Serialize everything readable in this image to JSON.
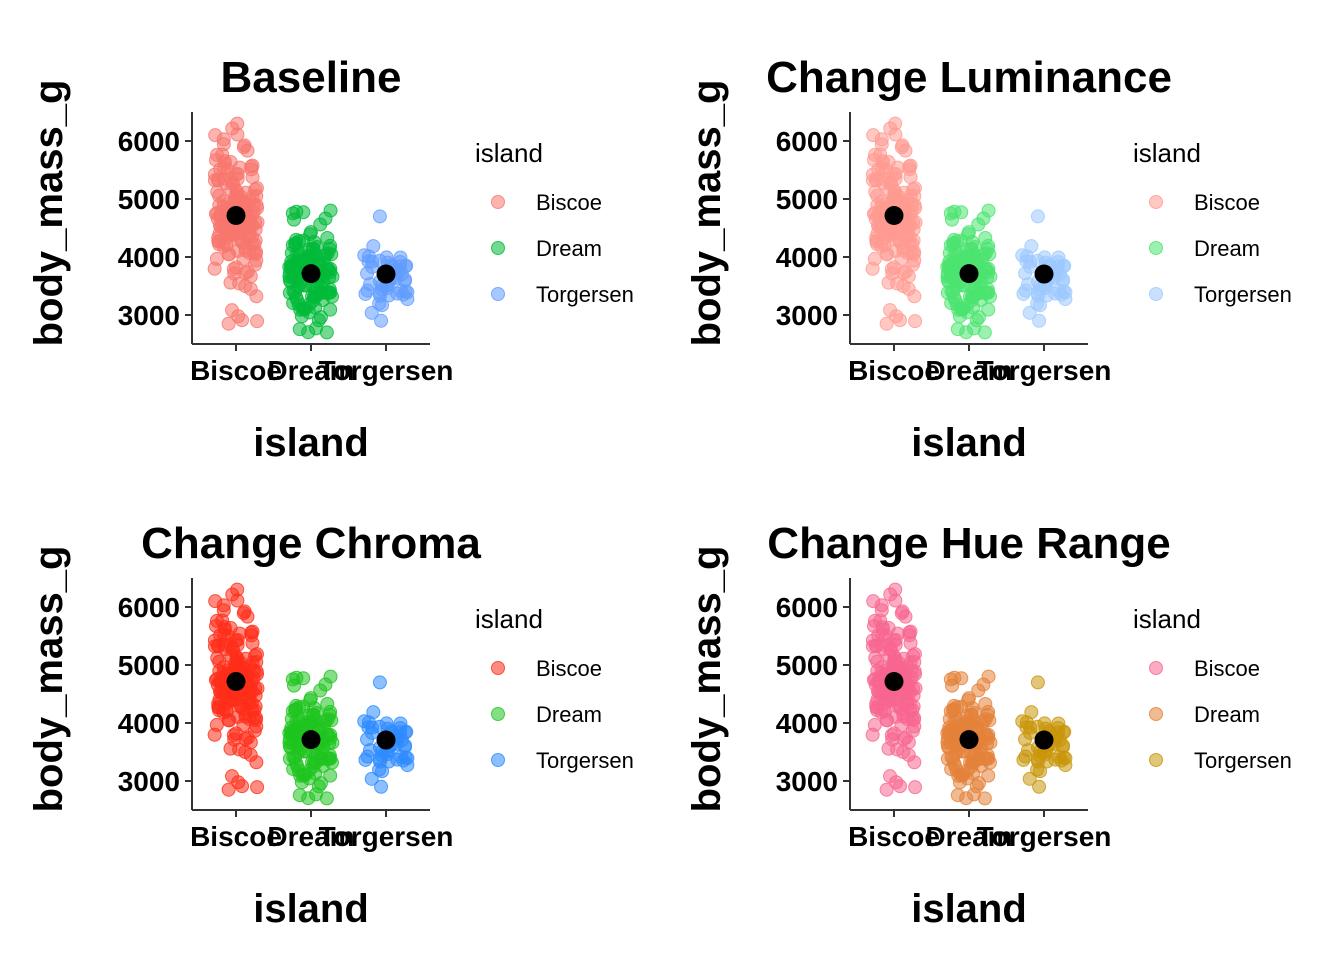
{
  "chart_data": [
    {
      "type": "scatter",
      "title": "Baseline",
      "xlabel": "island",
      "ylabel": "body_mass_g",
      "categories": [
        "Biscoe",
        "Dream",
        "Torgersen"
      ],
      "yticks": [
        3000,
        4000,
        5000,
        6000
      ],
      "ylim": [
        2500,
        6500
      ],
      "legend": {
        "title": "island",
        "position": "right"
      },
      "series": [
        {
          "name": "Biscoe",
          "color": "#F8766D",
          "mean": 4716,
          "min": 2850,
          "max": 6300,
          "n": 168
        },
        {
          "name": "Dream",
          "color": "#00BA38",
          "mean": 3713,
          "min": 2700,
          "max": 4800,
          "n": 124
        },
        {
          "name": "Torgersen",
          "color": "#619CFF",
          "mean": 3706,
          "min": 2900,
          "max": 4700,
          "n": 51
        }
      ],
      "mean_marker_color": "#000000"
    },
    {
      "type": "scatter",
      "title": "Change Luminance",
      "xlabel": "island",
      "ylabel": "body_mass_g",
      "categories": [
        "Biscoe",
        "Dream",
        "Torgersen"
      ],
      "yticks": [
        3000,
        4000,
        5000,
        6000
      ],
      "ylim": [
        2500,
        6500
      ],
      "legend": {
        "title": "island",
        "position": "right"
      },
      "series": [
        {
          "name": "Biscoe",
          "color": "#FF9A91",
          "mean": 4716,
          "min": 2850,
          "max": 6300,
          "n": 168
        },
        {
          "name": "Dream",
          "color": "#4BE36F",
          "mean": 3713,
          "min": 2700,
          "max": 4800,
          "n": 124
        },
        {
          "name": "Torgersen",
          "color": "#9CC9FF",
          "mean": 3706,
          "min": 2900,
          "max": 4700,
          "n": 51
        }
      ],
      "mean_marker_color": "#000000"
    },
    {
      "type": "scatter",
      "title": "Change Chroma",
      "xlabel": "island",
      "ylabel": "body_mass_g",
      "categories": [
        "Biscoe",
        "Dream",
        "Torgersen"
      ],
      "yticks": [
        3000,
        4000,
        5000,
        6000
      ],
      "ylim": [
        2500,
        6500
      ],
      "legend": {
        "title": "island",
        "position": "right"
      },
      "series": [
        {
          "name": "Biscoe",
          "color": "#FF2E19",
          "mean": 4716,
          "min": 2850,
          "max": 6300,
          "n": 168
        },
        {
          "name": "Dream",
          "color": "#1FC41F",
          "mean": 3713,
          "min": 2700,
          "max": 4800,
          "n": 124
        },
        {
          "name": "Torgersen",
          "color": "#2E8BFF",
          "mean": 3706,
          "min": 2900,
          "max": 4700,
          "n": 51
        }
      ],
      "mean_marker_color": "#000000"
    },
    {
      "type": "scatter",
      "title": "Change Hue Range",
      "xlabel": "island",
      "ylabel": "body_mass_g",
      "categories": [
        "Biscoe",
        "Dream",
        "Torgersen"
      ],
      "yticks": [
        3000,
        4000,
        5000,
        6000
      ],
      "ylim": [
        2500,
        6500
      ],
      "legend": {
        "title": "island",
        "position": "right"
      },
      "series": [
        {
          "name": "Biscoe",
          "color": "#F8668F",
          "mean": 4716,
          "min": 2850,
          "max": 6300,
          "n": 168
        },
        {
          "name": "Dream",
          "color": "#E3823A",
          "mean": 3713,
          "min": 2700,
          "max": 4800,
          "n": 124
        },
        {
          "name": "Torgersen",
          "color": "#C9960A",
          "mean": 3706,
          "min": 2900,
          "max": 4700,
          "n": 51
        }
      ],
      "mean_marker_color": "#000000"
    }
  ]
}
